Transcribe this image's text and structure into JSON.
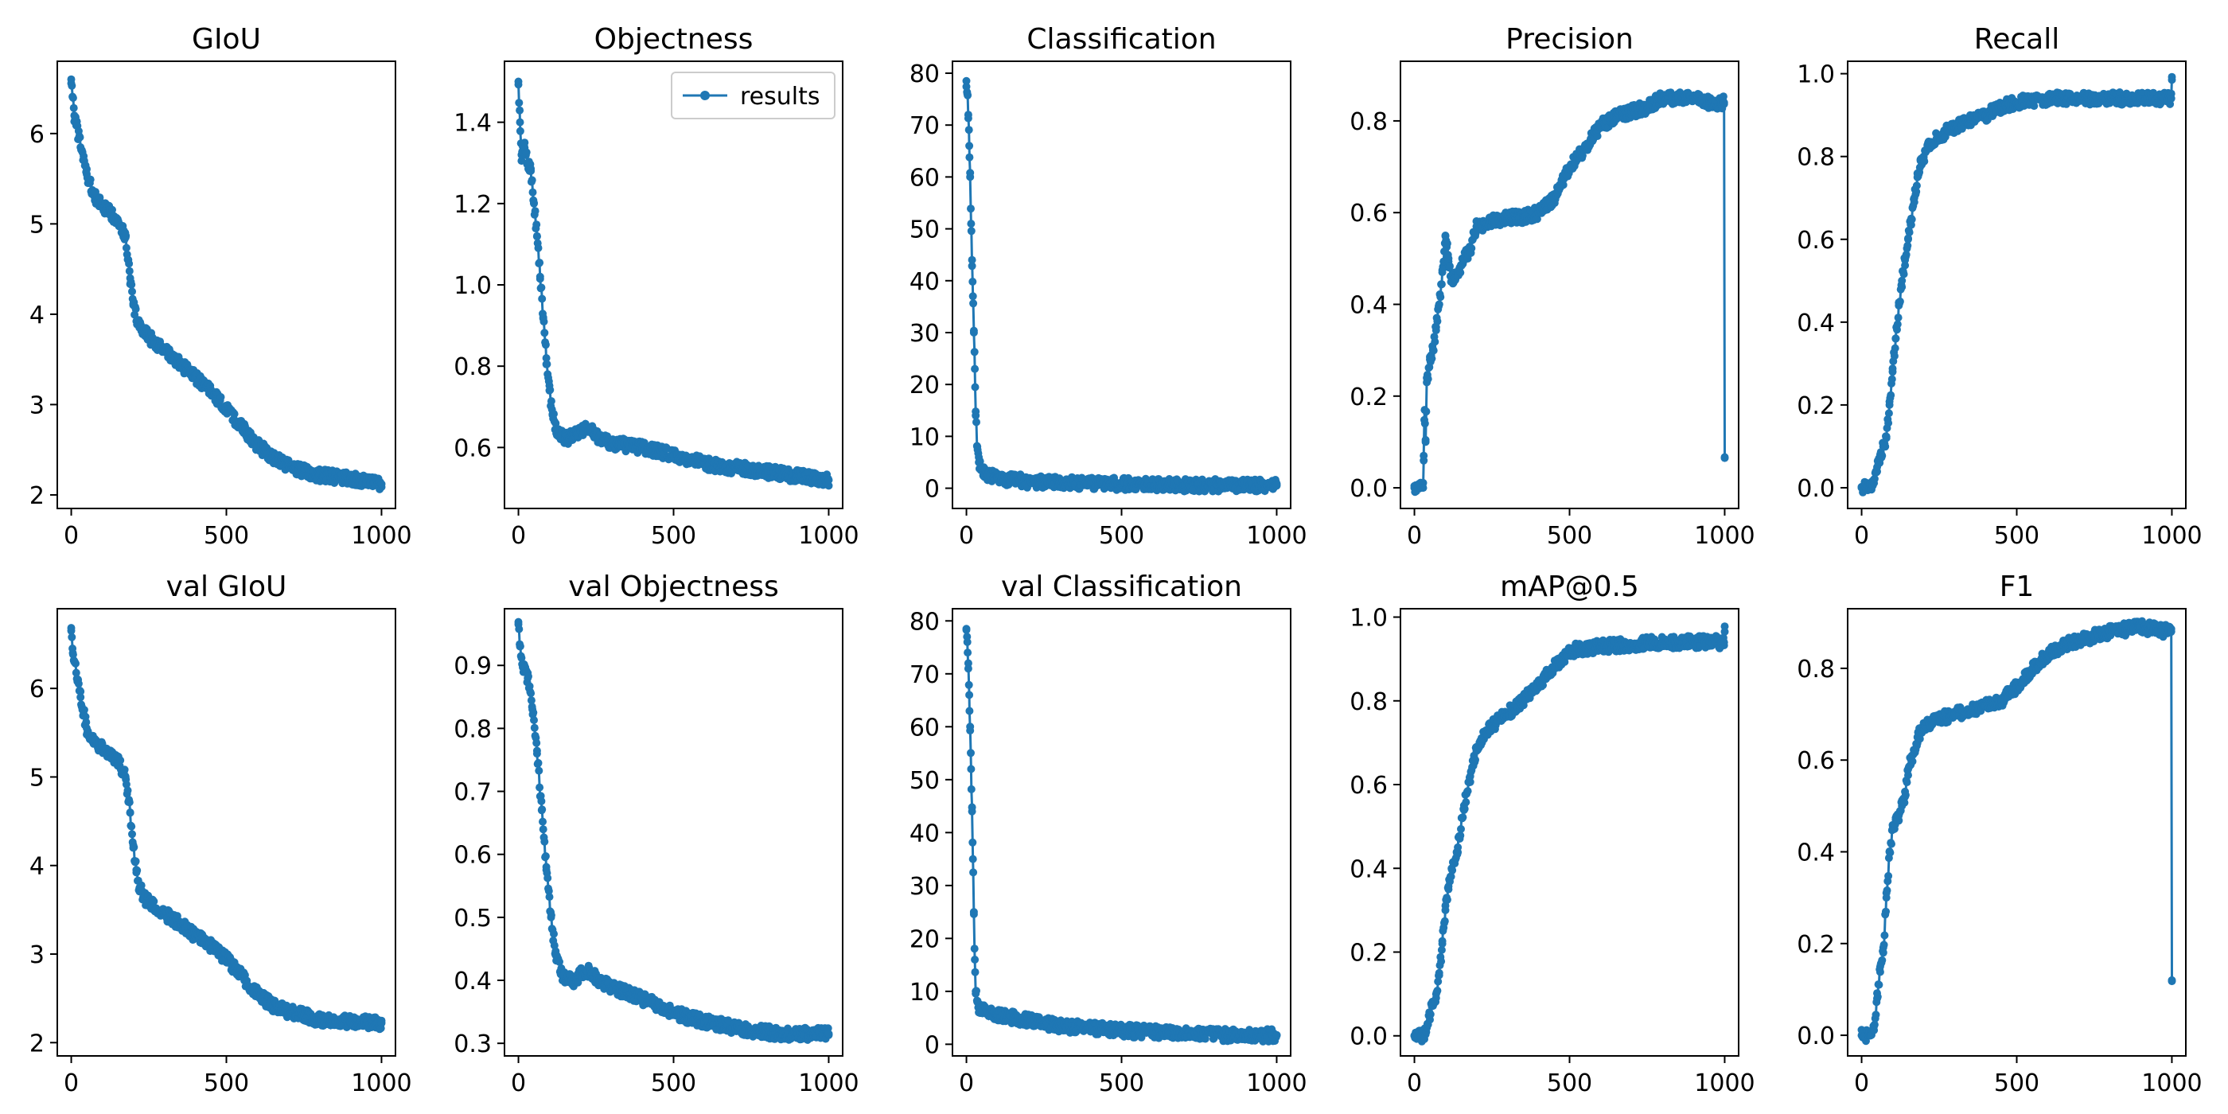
{
  "figure": {
    "line_color": "#1f77b4"
  },
  "chart_data": [
    {
      "type": "line",
      "title": "GIoU",
      "xlabel": "",
      "ylabel": "",
      "xlim": [
        -45,
        1045
      ],
      "ylim": [
        1.85,
        6.8
      ],
      "xticks": [
        0,
        500,
        1000
      ],
      "xtick_labels": [
        "0",
        "500",
        "1000"
      ],
      "yticks": [
        2,
        3,
        4,
        5,
        6
      ],
      "ytick_labels": [
        "2",
        "3",
        "4",
        "5",
        "6"
      ],
      "grid": false,
      "legend": "",
      "series": [
        {
          "x": [
            0,
            10,
            25,
            50,
            75,
            100,
            125,
            150,
            175,
            190,
            200,
            220,
            250,
            300,
            350,
            400,
            450,
            500,
            550,
            600,
            650,
            700,
            750,
            800,
            850,
            900,
            950,
            1000
          ],
          "y": [
            6.6,
            6.2,
            5.95,
            5.55,
            5.3,
            5.2,
            5.12,
            5.05,
            4.85,
            4.4,
            4.1,
            3.85,
            3.75,
            3.6,
            3.45,
            3.3,
            3.15,
            2.95,
            2.75,
            2.55,
            2.42,
            2.32,
            2.26,
            2.22,
            2.2,
            2.18,
            2.16,
            2.12
          ]
        }
      ]
    },
    {
      "type": "line",
      "title": "Objectness",
      "xlabel": "",
      "ylabel": "",
      "xlim": [
        -45,
        1045
      ],
      "ylim": [
        0.45,
        1.55
      ],
      "xticks": [
        0,
        500,
        1000
      ],
      "xtick_labels": [
        "0",
        "500",
        "1000"
      ],
      "yticks": [
        0.6,
        0.8,
        1.0,
        1.2,
        1.4
      ],
      "ytick_labels": [
        "0.6",
        "0.8",
        "1.0",
        "1.2",
        "1.4"
      ],
      "grid": false,
      "legend": "top-right",
      "series": [
        {
          "name": "results",
          "x": [
            0,
            5,
            10,
            20,
            30,
            40,
            50,
            60,
            70,
            80,
            90,
            100,
            110,
            125,
            150,
            175,
            200,
            225,
            250,
            300,
            400,
            500,
            600,
            700,
            800,
            900,
            1000
          ],
          "y": [
            1.5,
            1.4,
            1.32,
            1.35,
            1.3,
            1.28,
            1.2,
            1.12,
            1.02,
            0.92,
            0.82,
            0.74,
            0.68,
            0.64,
            0.62,
            0.63,
            0.64,
            0.65,
            0.63,
            0.61,
            0.6,
            0.58,
            0.56,
            0.55,
            0.54,
            0.53,
            0.52
          ]
        }
      ]
    },
    {
      "type": "line",
      "title": "Classification",
      "xlabel": "",
      "ylabel": "",
      "xlim": [
        -45,
        1045
      ],
      "ylim": [
        -3.9,
        82.3
      ],
      "xticks": [
        0,
        500,
        1000
      ],
      "xtick_labels": [
        "0",
        "500",
        "1000"
      ],
      "yticks": [
        0,
        10,
        20,
        30,
        40,
        50,
        60,
        70,
        80
      ],
      "ytick_labels": [
        "0",
        "10",
        "20",
        "30",
        "40",
        "50",
        "60",
        "70",
        "80"
      ],
      "grid": false,
      "legend": "",
      "series": [
        {
          "x": [
            0,
            3,
            6,
            9,
            12,
            15,
            18,
            21,
            24,
            27,
            30,
            35,
            40,
            50,
            70,
            100,
            150,
            200,
            300,
            500,
            700,
            1000
          ],
          "y": [
            78.5,
            76,
            72,
            66,
            60,
            51,
            44,
            37,
            30,
            23,
            14,
            8,
            5,
            3.5,
            2.5,
            2,
            1.6,
            1.3,
            1,
            0.8,
            0.6,
            0.5
          ]
        }
      ]
    },
    {
      "type": "line",
      "title": "Precision",
      "xlabel": "",
      "ylabel": "",
      "xlim": [
        -45,
        1045
      ],
      "ylim": [
        -0.045,
        0.93
      ],
      "xticks": [
        0,
        500,
        1000
      ],
      "xtick_labels": [
        "0",
        "500",
        "1000"
      ],
      "yticks": [
        0.0,
        0.2,
        0.4,
        0.6,
        0.8
      ],
      "ytick_labels": [
        "0.0",
        "0.2",
        "0.4",
        "0.6",
        "0.8"
      ],
      "grid": false,
      "legend": "",
      "series": [
        {
          "x": [
            0,
            20,
            28,
            30,
            33,
            36,
            40,
            50,
            60,
            70,
            80,
            90,
            100,
            110,
            120,
            140,
            160,
            180,
            200,
            250,
            300,
            350,
            400,
            450,
            500,
            550,
            600,
            650,
            700,
            750,
            800,
            850,
            900,
            950,
            990,
            998,
            1000
          ],
          "y": [
            0,
            0,
            0,
            0.07,
            0.17,
            0.1,
            0.23,
            0.28,
            0.3,
            0.35,
            0.4,
            0.47,
            0.55,
            0.5,
            0.45,
            0.47,
            0.5,
            0.52,
            0.57,
            0.58,
            0.59,
            0.59,
            0.6,
            0.63,
            0.7,
            0.74,
            0.79,
            0.81,
            0.82,
            0.83,
            0.85,
            0.85,
            0.85,
            0.84,
            0.84,
            0.84,
            0.065
          ]
        }
      ]
    },
    {
      "type": "line",
      "title": "Recall",
      "xlabel": "",
      "ylabel": "",
      "xlim": [
        -45,
        1045
      ],
      "ylim": [
        -0.05,
        1.03
      ],
      "xticks": [
        0,
        500,
        1000
      ],
      "xtick_labels": [
        "0",
        "500",
        "1000"
      ],
      "yticks": [
        0.0,
        0.2,
        0.4,
        0.6,
        0.8,
        1.0
      ],
      "ytick_labels": [
        "0.0",
        "0.2",
        "0.4",
        "0.6",
        "0.8",
        "1.0"
      ],
      "grid": false,
      "legend": "",
      "series": [
        {
          "x": [
            0,
            20,
            30,
            40,
            50,
            60,
            70,
            80,
            90,
            100,
            110,
            120,
            130,
            140,
            150,
            160,
            170,
            180,
            190,
            200,
            220,
            250,
            300,
            350,
            400,
            450,
            500,
            600,
            700,
            800,
            900,
            998,
            1000
          ],
          "y": [
            0,
            0,
            0,
            0.02,
            0.05,
            0.08,
            0.1,
            0.12,
            0.2,
            0.28,
            0.36,
            0.44,
            0.5,
            0.55,
            0.6,
            0.65,
            0.7,
            0.75,
            0.79,
            0.8,
            0.83,
            0.85,
            0.87,
            0.89,
            0.9,
            0.92,
            0.93,
            0.94,
            0.94,
            0.94,
            0.94,
            0.94,
            0.985
          ]
        }
      ]
    },
    {
      "type": "line",
      "title": "val GIoU",
      "xlabel": "",
      "ylabel": "",
      "xlim": [
        -45,
        1045
      ],
      "ylim": [
        1.85,
        6.9
      ],
      "xticks": [
        0,
        500,
        1000
      ],
      "xtick_labels": [
        "0",
        "500",
        "1000"
      ],
      "yticks": [
        2,
        3,
        4,
        5,
        6
      ],
      "ytick_labels": [
        "2",
        "3",
        "4",
        "5",
        "6"
      ],
      "grid": false,
      "legend": "",
      "series": [
        {
          "x": [
            0,
            5,
            10,
            20,
            30,
            50,
            75,
            100,
            125,
            150,
            175,
            190,
            200,
            210,
            220,
            240,
            260,
            300,
            350,
            400,
            450,
            500,
            550,
            600,
            650,
            700,
            800,
            900,
            1000
          ],
          "y": [
            6.65,
            6.4,
            6.3,
            6.1,
            5.9,
            5.55,
            5.4,
            5.32,
            5.25,
            5.18,
            5.0,
            4.6,
            4.2,
            3.95,
            3.75,
            3.62,
            3.55,
            3.45,
            3.35,
            3.2,
            3.1,
            2.95,
            2.75,
            2.55,
            2.42,
            2.35,
            2.26,
            2.24,
            2.22
          ]
        }
      ]
    },
    {
      "type": "line",
      "title": "val Objectness",
      "xlabel": "",
      "ylabel": "",
      "xlim": [
        -45,
        1045
      ],
      "ylim": [
        0.28,
        0.99
      ],
      "xticks": [
        0,
        500,
        1000
      ],
      "xtick_labels": [
        "0",
        "500",
        "1000"
      ],
      "yticks": [
        0.3,
        0.4,
        0.5,
        0.6,
        0.7,
        0.8,
        0.9
      ],
      "ytick_labels": [
        "0.3",
        "0.4",
        "0.5",
        "0.6",
        "0.7",
        "0.8",
        "0.9"
      ],
      "grid": false,
      "legend": "",
      "series": [
        {
          "x": [
            0,
            5,
            15,
            30,
            45,
            60,
            75,
            90,
            105,
            120,
            140,
            160,
            180,
            200,
            230,
            260,
            300,
            350,
            400,
            450,
            500,
            550,
            600,
            650,
            700,
            750,
            800,
            850,
            900,
            950,
            1000
          ],
          "y": [
            0.965,
            0.93,
            0.9,
            0.88,
            0.83,
            0.76,
            0.67,
            0.58,
            0.5,
            0.44,
            0.41,
            0.4,
            0.4,
            0.41,
            0.415,
            0.4,
            0.39,
            0.38,
            0.37,
            0.36,
            0.35,
            0.34,
            0.335,
            0.33,
            0.325,
            0.32,
            0.318,
            0.315,
            0.315,
            0.315,
            0.315
          ]
        }
      ]
    },
    {
      "type": "line",
      "title": "val Classification",
      "xlabel": "",
      "ylabel": "",
      "xlim": [
        -45,
        1045
      ],
      "ylim": [
        -2.2,
        82.3
      ],
      "xticks": [
        0,
        500,
        1000
      ],
      "xtick_labels": [
        "0",
        "500",
        "1000"
      ],
      "yticks": [
        0,
        10,
        20,
        30,
        40,
        50,
        60,
        70,
        80
      ],
      "ytick_labels": [
        "0",
        "10",
        "20",
        "30",
        "40",
        "50",
        "60",
        "70",
        "80"
      ],
      "grid": false,
      "legend": "",
      "series": [
        {
          "x": [
            0,
            3,
            6,
            9,
            12,
            15,
            18,
            21,
            24,
            27,
            30,
            35,
            40,
            50,
            70,
            100,
            150,
            200,
            300,
            400,
            500,
            600,
            700,
            800,
            900,
            1000
          ],
          "y": [
            78.5,
            76,
            72,
            66,
            60,
            52,
            44,
            35,
            25,
            16,
            10,
            8,
            7,
            6.5,
            6,
            5.5,
            5,
            4.5,
            3.5,
            3,
            2.6,
            2.3,
            2,
            1.8,
            1.7,
            1.7
          ]
        }
      ]
    },
    {
      "type": "line",
      "title": "mAP@0.5",
      "xlabel": "",
      "ylabel": "",
      "xlim": [
        -45,
        1045
      ],
      "ylim": [
        -0.048,
        1.02
      ],
      "xticks": [
        0,
        500,
        1000
      ],
      "xtick_labels": [
        "0",
        "500",
        "1000"
      ],
      "yticks": [
        0.0,
        0.2,
        0.4,
        0.6,
        0.8,
        1.0
      ],
      "ytick_labels": [
        "0.0",
        "0.2",
        "0.4",
        "0.6",
        "0.8",
        "1.0"
      ],
      "grid": false,
      "legend": "",
      "series": [
        {
          "x": [
            0,
            20,
            30,
            40,
            50,
            60,
            70,
            80,
            90,
            100,
            110,
            120,
            140,
            160,
            180,
            200,
            210,
            220,
            230,
            250,
            300,
            350,
            400,
            450,
            500,
            600,
            700,
            800,
            900,
            998,
            1000
          ],
          "y": [
            0,
            0,
            0,
            0.02,
            0.05,
            0.08,
            0.1,
            0.15,
            0.22,
            0.3,
            0.35,
            0.4,
            0.45,
            0.55,
            0.62,
            0.68,
            0.7,
            0.71,
            0.72,
            0.74,
            0.77,
            0.8,
            0.84,
            0.88,
            0.92,
            0.93,
            0.935,
            0.94,
            0.94,
            0.94,
            0.965
          ]
        }
      ]
    },
    {
      "type": "line",
      "title": "F1",
      "xlabel": "",
      "ylabel": "",
      "xlim": [
        -45,
        1045
      ],
      "ylim": [
        -0.045,
        0.93
      ],
      "xticks": [
        0,
        500,
        1000
      ],
      "xtick_labels": [
        "0",
        "500",
        "1000"
      ],
      "yticks": [
        0.0,
        0.2,
        0.4,
        0.6,
        0.8
      ],
      "ytick_labels": [
        "0.0",
        "0.2",
        "0.4",
        "0.6",
        "0.8"
      ],
      "grid": false,
      "legend": "",
      "series": [
        {
          "x": [
            0,
            20,
            30,
            40,
            50,
            60,
            70,
            80,
            90,
            100,
            110,
            120,
            130,
            140,
            150,
            160,
            170,
            180,
            190,
            200,
            220,
            250,
            300,
            350,
            400,
            450,
            500,
            550,
            600,
            650,
            700,
            750,
            800,
            850,
            900,
            950,
            990,
            998,
            1000
          ],
          "y": [
            0,
            0,
            0,
            0.02,
            0.08,
            0.15,
            0.18,
            0.3,
            0.4,
            0.45,
            0.47,
            0.48,
            0.5,
            0.52,
            0.58,
            0.6,
            0.62,
            0.65,
            0.66,
            0.67,
            0.68,
            0.69,
            0.7,
            0.71,
            0.72,
            0.73,
            0.76,
            0.8,
            0.83,
            0.85,
            0.86,
            0.87,
            0.88,
            0.885,
            0.89,
            0.885,
            0.88,
            0.88,
            0.12
          ]
        }
      ]
    }
  ]
}
